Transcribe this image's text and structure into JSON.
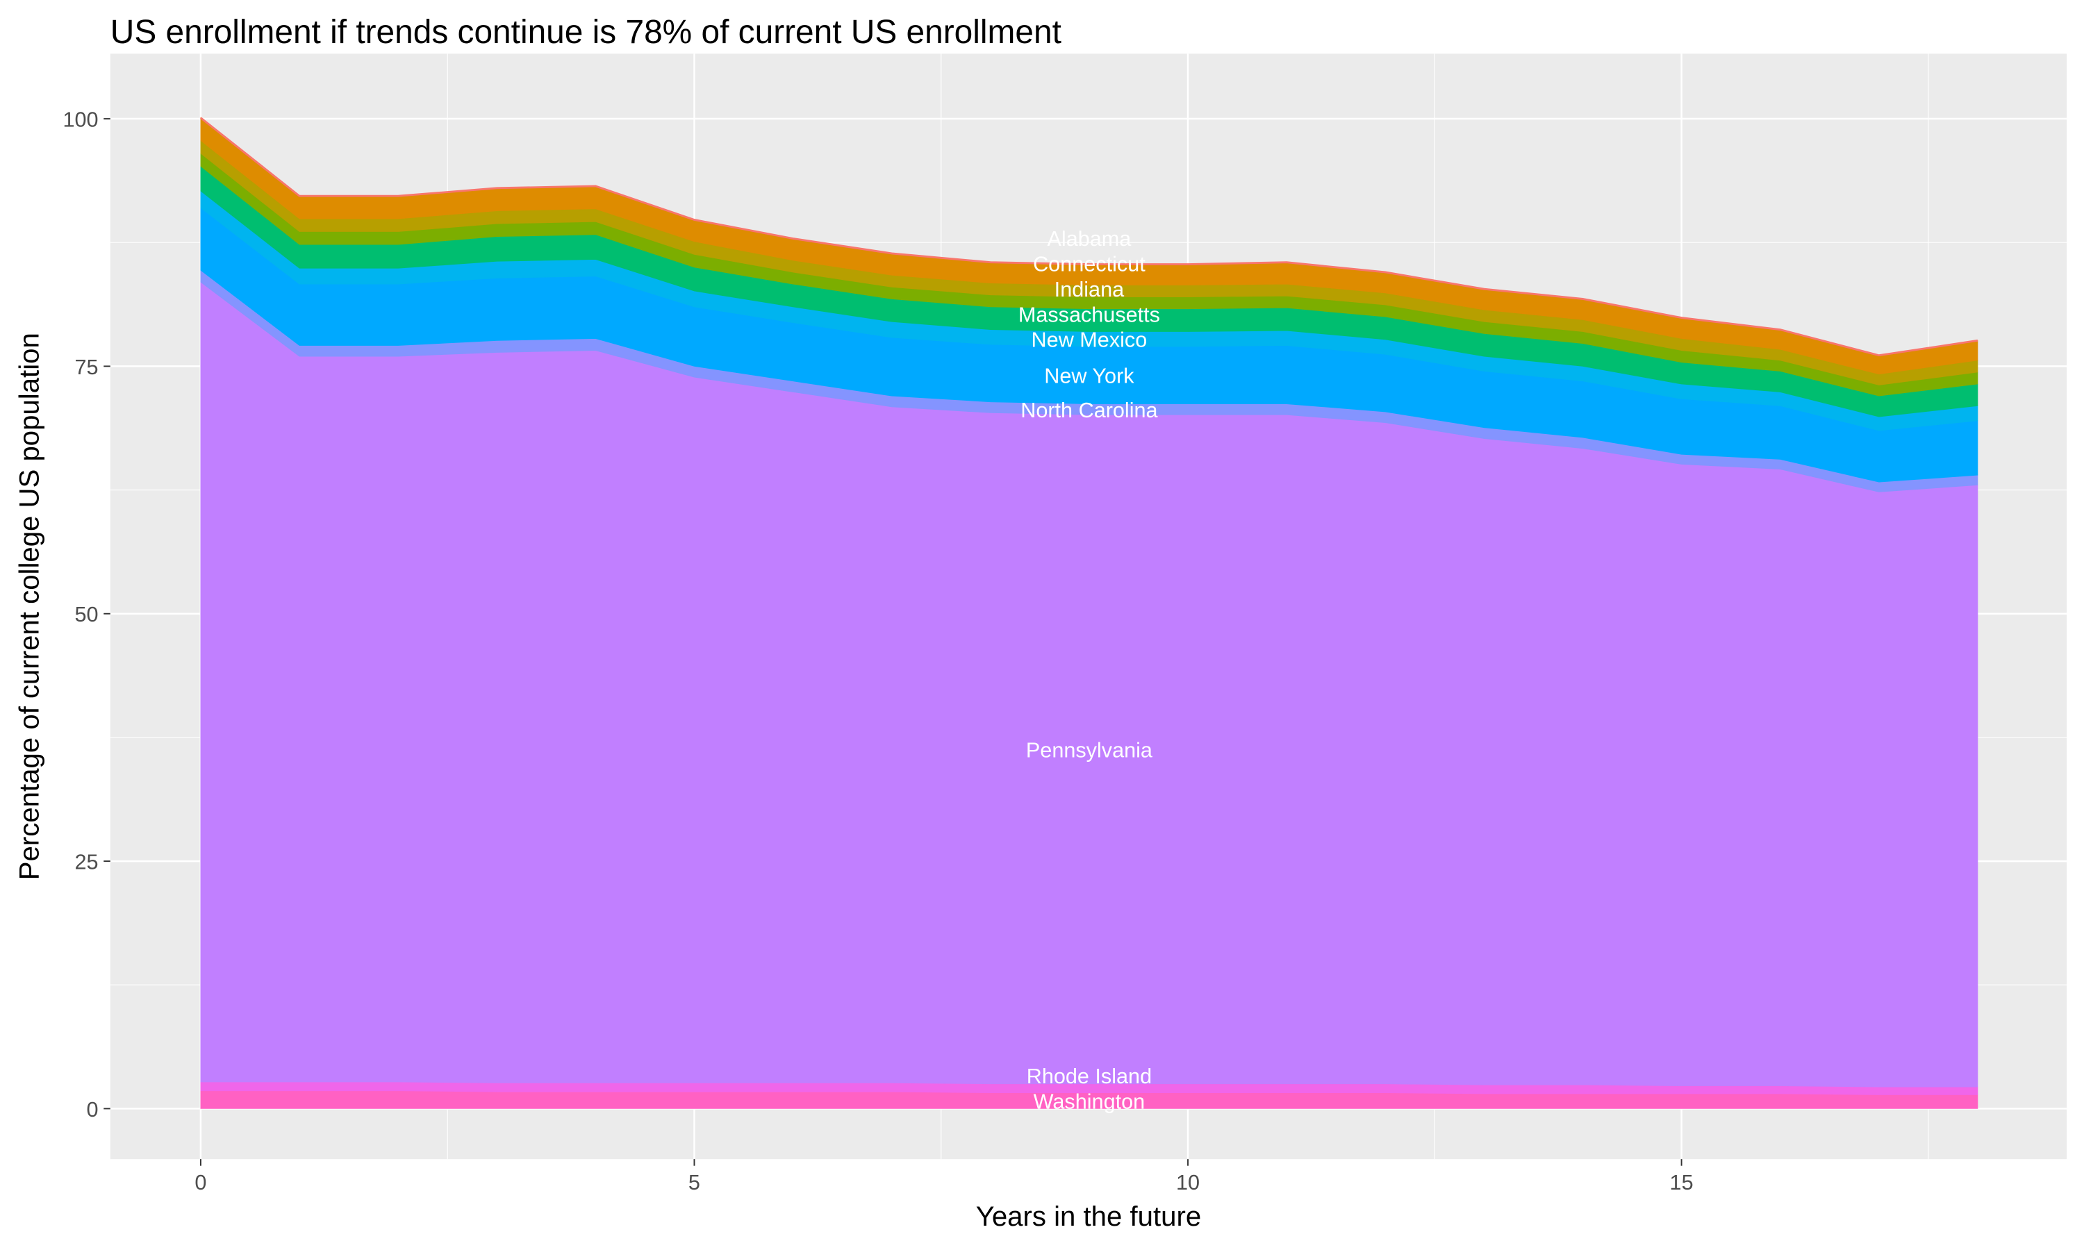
{
  "chart_data": {
    "type": "area",
    "stacked": true,
    "title": "US enrollment if trends continue is 78% of current US enrollment",
    "xlabel": "Years in the future",
    "ylabel": "Percentage of current college US population",
    "xlim": [
      -1.7,
      18.6
    ],
    "ylim": [
      -2.8,
      105
    ],
    "xticks": [
      0,
      5,
      10,
      15
    ],
    "yticks": [
      0,
      25,
      50,
      75,
      100
    ],
    "grid": true,
    "legend": "none",
    "x": [
      0,
      1,
      2,
      3,
      4,
      5,
      6,
      7,
      8,
      9,
      10,
      11,
      12,
      13,
      14,
      15,
      16,
      17,
      18
    ],
    "series": [
      {
        "name": "Washington",
        "color": "#FF61C3",
        "values": [
          1.8,
          1.8,
          1.8,
          1.7,
          1.7,
          1.7,
          1.7,
          1.7,
          1.6,
          1.6,
          1.6,
          1.6,
          1.6,
          1.5,
          1.5,
          1.5,
          1.5,
          1.4,
          1.4
        ]
      },
      {
        "name": "Rhode Island",
        "color": "#F066EA",
        "values": [
          0.9,
          0.9,
          0.9,
          0.9,
          0.9,
          0.9,
          0.9,
          0.9,
          0.9,
          0.9,
          0.9,
          0.9,
          0.9,
          0.9,
          0.9,
          0.8,
          0.8,
          0.8,
          0.8
        ]
      },
      {
        "name": "Pennsylvania",
        "color": "#C17FFF",
        "values": [
          80.8,
          73.3,
          73.3,
          73.8,
          74.0,
          71.3,
          69.8,
          68.3,
          67.8,
          67.6,
          67.6,
          67.6,
          66.8,
          65.3,
          64.3,
          62.8,
          62.3,
          60.1,
          60.8
        ]
      },
      {
        "name": "North Carolina",
        "color": "#8494FF",
        "values": [
          1.2,
          1.1,
          1.1,
          1.2,
          1.2,
          1.1,
          1.1,
          1.1,
          1.1,
          1.1,
          1.1,
          1.1,
          1.1,
          1.1,
          1.1,
          1.0,
          1.0,
          1.0,
          1.0
        ]
      },
      {
        "name": "New York",
        "color": "#00A9FF",
        "values": [
          6.3,
          6.2,
          6.2,
          6.3,
          6.3,
          6.0,
          5.9,
          5.9,
          5.8,
          5.8,
          5.8,
          5.9,
          5.8,
          5.7,
          5.7,
          5.6,
          5.4,
          5.2,
          5.5
        ]
      },
      {
        "name": "New Mexico",
        "color": "#00B4EF",
        "values": [
          1.7,
          1.6,
          1.6,
          1.7,
          1.7,
          1.6,
          1.6,
          1.6,
          1.5,
          1.5,
          1.5,
          1.5,
          1.5,
          1.5,
          1.5,
          1.5,
          1.4,
          1.4,
          1.5
        ]
      },
      {
        "name": "Massachusetts",
        "color": "#00BE70",
        "values": [
          2.5,
          2.4,
          2.4,
          2.5,
          2.5,
          2.4,
          2.3,
          2.3,
          2.3,
          2.3,
          2.3,
          2.3,
          2.3,
          2.3,
          2.3,
          2.2,
          2.1,
          2.1,
          2.2
        ]
      },
      {
        "name": "Indiana",
        "color": "#7CAE00",
        "values": [
          1.3,
          1.3,
          1.3,
          1.3,
          1.3,
          1.3,
          1.2,
          1.2,
          1.2,
          1.2,
          1.2,
          1.2,
          1.2,
          1.2,
          1.2,
          1.2,
          1.1,
          1.1,
          1.2
        ]
      },
      {
        "name": "Connecticut",
        "color": "#B79F00",
        "values": [
          1.3,
          1.3,
          1.3,
          1.3,
          1.3,
          1.3,
          1.2,
          1.2,
          1.2,
          1.2,
          1.2,
          1.2,
          1.2,
          1.2,
          1.2,
          1.2,
          1.1,
          1.1,
          1.2
        ]
      },
      {
        "name": "Alabama",
        "color": "#DE8C00",
        "values": [
          2.3,
          2.3,
          2.3,
          2.3,
          2.3,
          2.2,
          2.2,
          2.2,
          2.1,
          2.1,
          2.1,
          2.2,
          2.1,
          2.1,
          2.1,
          2.1,
          2.0,
          1.9,
          2.0
        ]
      }
    ],
    "label_x": 9
  },
  "colors": {
    "panel": "#EBEBEB",
    "grid": "#FFFFFF",
    "top_edge": "#F8766D"
  }
}
